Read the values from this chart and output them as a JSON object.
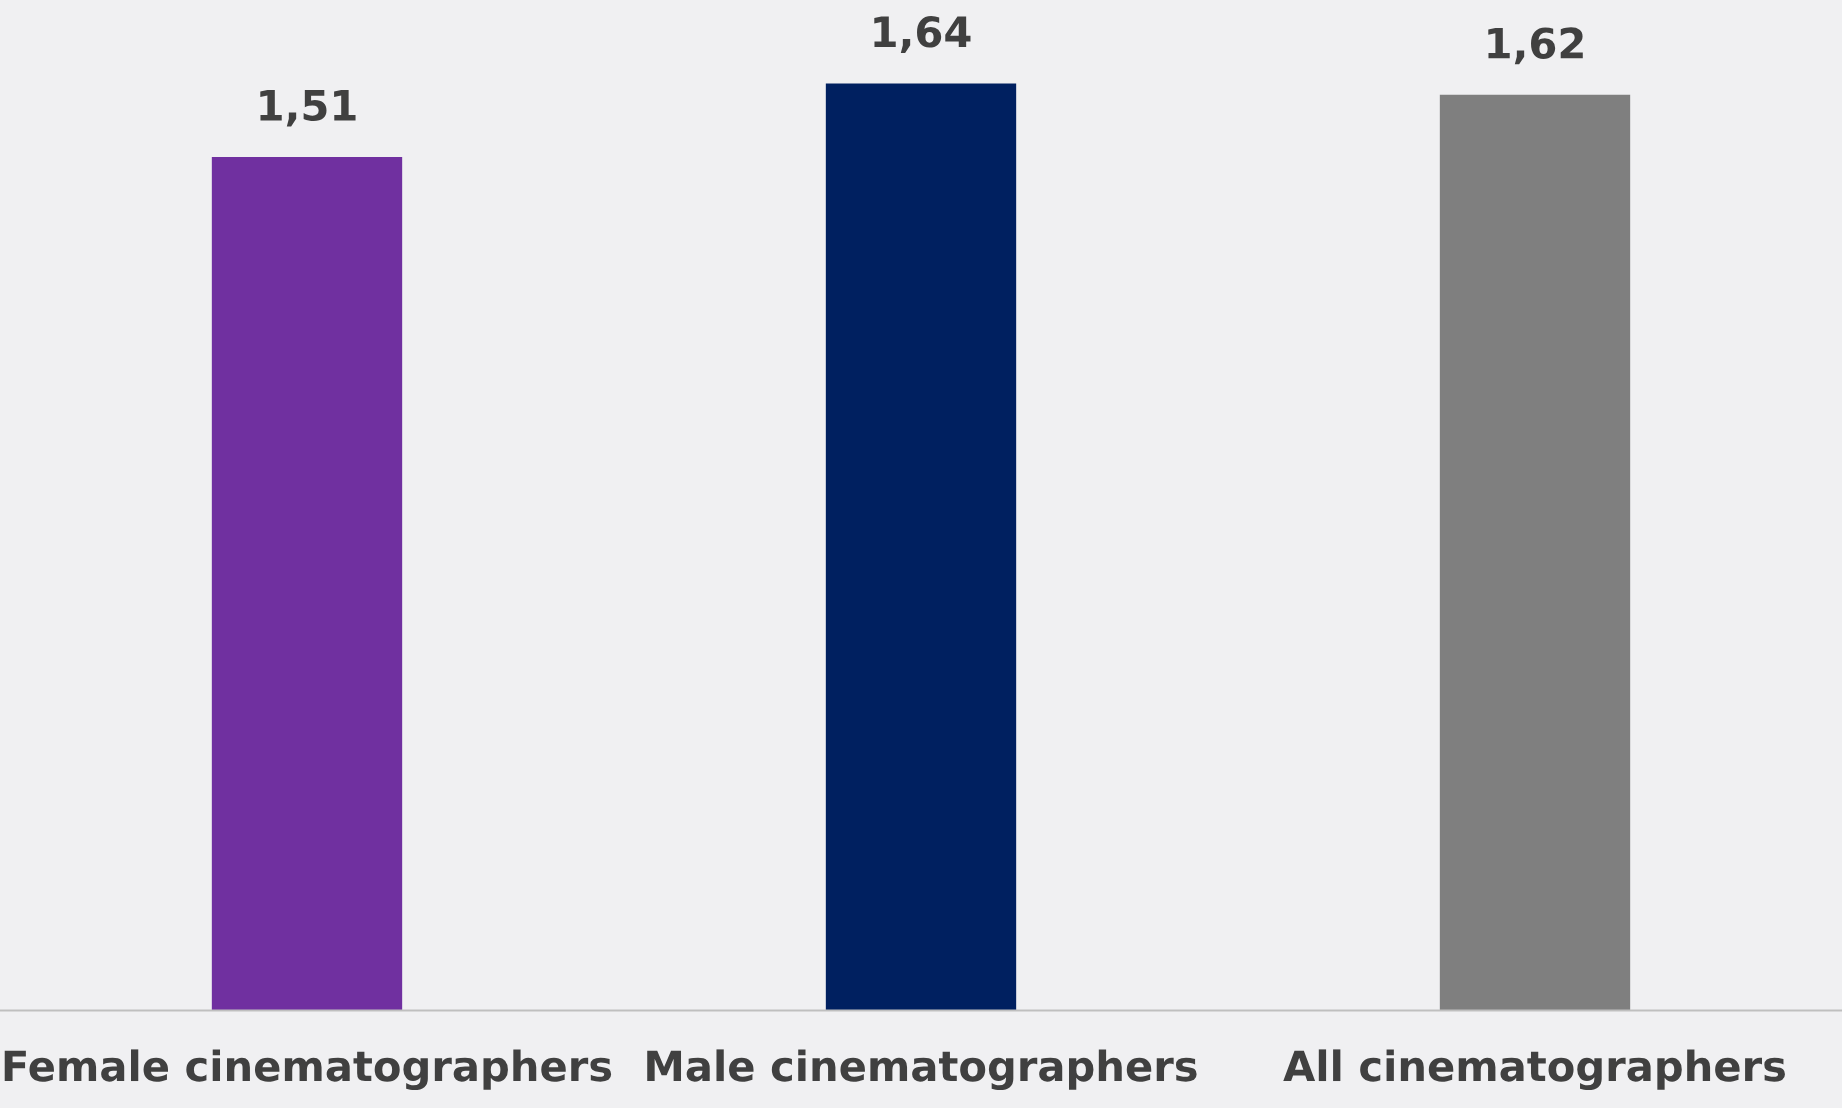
{
  "chart_data": {
    "type": "bar",
    "categories": [
      "Female cinematographers",
      "Male cinematographers",
      "All cinematographers"
    ],
    "values": [
      1.51,
      1.64,
      1.62
    ],
    "colors": [
      "#7030a0",
      "#002060",
      "#7f7f7f"
    ],
    "value_labels": [
      "1,51",
      "1,64",
      "1,62"
    ],
    "grid": false,
    "legend": false
  }
}
